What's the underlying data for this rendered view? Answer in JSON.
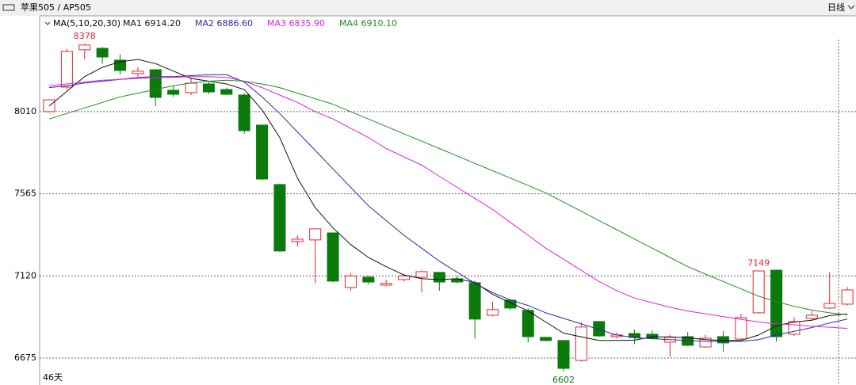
{
  "header": {
    "symbol": "苹果505 / AP505",
    "period": "日线"
  },
  "chart_data": {
    "type": "candlestick",
    "ylim": [
      6529,
      8529
    ],
    "yticks": [
      8010,
      7565,
      7120,
      6675
    ],
    "grid": true,
    "up_color": "#e8262a",
    "down_color": "#0b7a0b",
    "ma_label": "MA(5,10,20,30)",
    "period_label": "46天",
    "candles": {
      "open": [
        8010,
        8143,
        8345,
        8353,
        8289,
        8216,
        8237,
        8126,
        8113,
        8160,
        8130,
        8100,
        7937,
        7615,
        7306,
        7315,
        7353,
        7057,
        7113,
        7070,
        7100,
        7113,
        7139,
        7104,
        7083,
        6907,
        6989,
        6933,
        6787,
        6770,
        6662,
        6873,
        6791,
        6808,
        6804,
        6761,
        6791,
        6735,
        6791,
        6778,
        6920,
        7151,
        6804,
        6890,
        6946,
        6967
      ],
      "high": [
        8074,
        8350,
        8378,
        8360,
        8320,
        8250,
        8237,
        8150,
        8190,
        8175,
        8140,
        8110,
        7937,
        7620,
        7340,
        7375,
        7353,
        7135,
        7120,
        7100,
        7130,
        7150,
        7140,
        7120,
        7095,
        6980,
        6995,
        6945,
        6790,
        6770,
        6870,
        6875,
        6815,
        6830,
        6825,
        6800,
        6815,
        6800,
        6820,
        6915,
        7149,
        7151,
        6895,
        6930,
        7140,
        7060
      ],
      "low": [
        8005,
        8130,
        8293,
        8270,
        8210,
        8200,
        8040,
        8090,
        8100,
        8105,
        8100,
        7890,
        7640,
        7250,
        7280,
        7080,
        7085,
        7040,
        7075,
        7065,
        7090,
        7030,
        7040,
        7080,
        6780,
        6900,
        6935,
        6760,
        6765,
        6602,
        6655,
        6790,
        6780,
        6750,
        6775,
        6680,
        6740,
        6730,
        6710,
        6770,
        6915,
        6765,
        6795,
        6880,
        6940,
        6960
      ],
      "close": [
        8074,
        8336,
        8371,
        8306,
        8233,
        8229,
        8087,
        8104,
        8164,
        8117,
        8104,
        7907,
        7645,
        7255,
        7319,
        7375,
        7092,
        7120,
        7087,
        7079,
        7120,
        7143,
        7087,
        7087,
        6886,
        6937,
        6946,
        6791,
        6770,
        6619,
        6843,
        6795,
        6800,
        6787,
        6783,
        6787,
        6744,
        6783,
        6757,
        6894,
        7147,
        6791,
        6873,
        6907,
        6971,
        7044
      ]
    },
    "series": [
      {
        "name": "MA1 6914.20",
        "color": "#111111",
        "values": [
          8040,
          8120,
          8200,
          8250,
          8280,
          8293,
          8270,
          8230,
          8190,
          8175,
          8160,
          8130,
          8020,
          7870,
          7650,
          7490,
          7380,
          7290,
          7220,
          7170,
          7125,
          7105,
          7100,
          7105,
          7085,
          7020,
          6975,
          6930,
          6870,
          6810,
          6790,
          6770,
          6770,
          6772,
          6790,
          6790,
          6785,
          6775,
          6770,
          6770,
          6800,
          6850,
          6870,
          6880,
          6905,
          6914.2
        ]
      },
      {
        "name": "MA2 6886.60",
        "color": "#2b2ba8",
        "values": [
          8140,
          8150,
          8165,
          8175,
          8185,
          8195,
          8200,
          8200,
          8205,
          8210,
          8210,
          8170,
          8090,
          8000,
          7900,
          7800,
          7700,
          7600,
          7500,
          7420,
          7340,
          7270,
          7200,
          7140,
          7080,
          7030,
          6990,
          6960,
          6920,
          6890,
          6860,
          6830,
          6800,
          6785,
          6780,
          6775,
          6770,
          6765,
          6765,
          6765,
          6775,
          6800,
          6820,
          6840,
          6865,
          6886.6
        ]
      },
      {
        "name": "MA3 6835.90",
        "color": "#e020e0",
        "values": [
          8150,
          8160,
          8170,
          8180,
          8185,
          8190,
          8195,
          8195,
          8200,
          8200,
          8195,
          8175,
          8140,
          8100,
          8060,
          8010,
          7970,
          7920,
          7870,
          7810,
          7765,
          7720,
          7660,
          7600,
          7540,
          7480,
          7410,
          7340,
          7270,
          7210,
          7150,
          7090,
          7040,
          7000,
          6975,
          6950,
          6930,
          6915,
          6900,
          6885,
          6870,
          6860,
          6855,
          6848,
          6842,
          6835.9
        ]
      },
      {
        "name": "MA4 6910.10",
        "color": "#1f8f1f",
        "values": [
          7970,
          8000,
          8030,
          8060,
          8090,
          8110,
          8130,
          8150,
          8165,
          8175,
          8180,
          8175,
          8160,
          8140,
          8110,
          8080,
          8050,
          8010,
          7970,
          7930,
          7890,
          7850,
          7810,
          7770,
          7730,
          7690,
          7650,
          7610,
          7570,
          7520,
          7470,
          7420,
          7370,
          7320,
          7270,
          7220,
          7170,
          7130,
          7090,
          7050,
          7010,
          6980,
          6955,
          6935,
          6920,
          6910.1
        ]
      }
    ],
    "annotations": [
      {
        "text": "8378",
        "value": 8378
      },
      {
        "text": "7149",
        "value": 7149
      },
      {
        "text": "6602",
        "value": 6602
      }
    ]
  }
}
